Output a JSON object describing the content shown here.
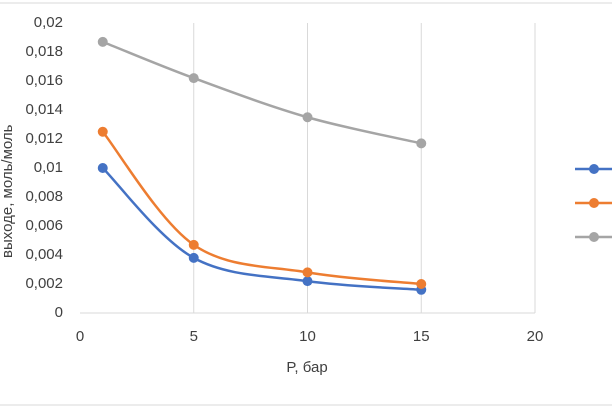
{
  "chart_data": {
    "type": "line",
    "x_label": "P, бар",
    "y_label": "выходе, моль/моль",
    "x": [
      1,
      5,
      10,
      15
    ],
    "series": [
      {
        "color": "#4472c4",
        "values": [
          0.01,
          0.0038,
          0.0022,
          0.0016
        ]
      },
      {
        "color": "#ed7d31",
        "values": [
          0.0125,
          0.0047,
          0.0028,
          0.002
        ]
      },
      {
        "color": "#a5a5a5",
        "values": [
          0.0187,
          0.0162,
          0.0135,
          0.0117
        ]
      }
    ],
    "xlim": [
      0,
      20
    ],
    "xticks": [
      0,
      5,
      10,
      15,
      20
    ],
    "ylim": [
      0,
      0.02
    ],
    "yticks": [
      0,
      {
        "value": 0.002,
        "label": "0,002"
      },
      {
        "value": 0.004,
        "label": "0,004"
      },
      {
        "value": 0.006,
        "label": "0,006"
      },
      {
        "value": 0.008,
        "label": "0,008"
      },
      {
        "value": 0.01,
        "label": "0,01"
      },
      {
        "value": 0.012,
        "label": "0,012"
      },
      {
        "value": 0.014,
        "label": "0,014"
      },
      {
        "value": 0.016,
        "label": "0,016"
      },
      {
        "value": 0.018,
        "label": "0,018"
      },
      {
        "value": 0.02,
        "label": "0,02"
      }
    ],
    "grid": "x",
    "smooth": true,
    "legend": "right"
  }
}
